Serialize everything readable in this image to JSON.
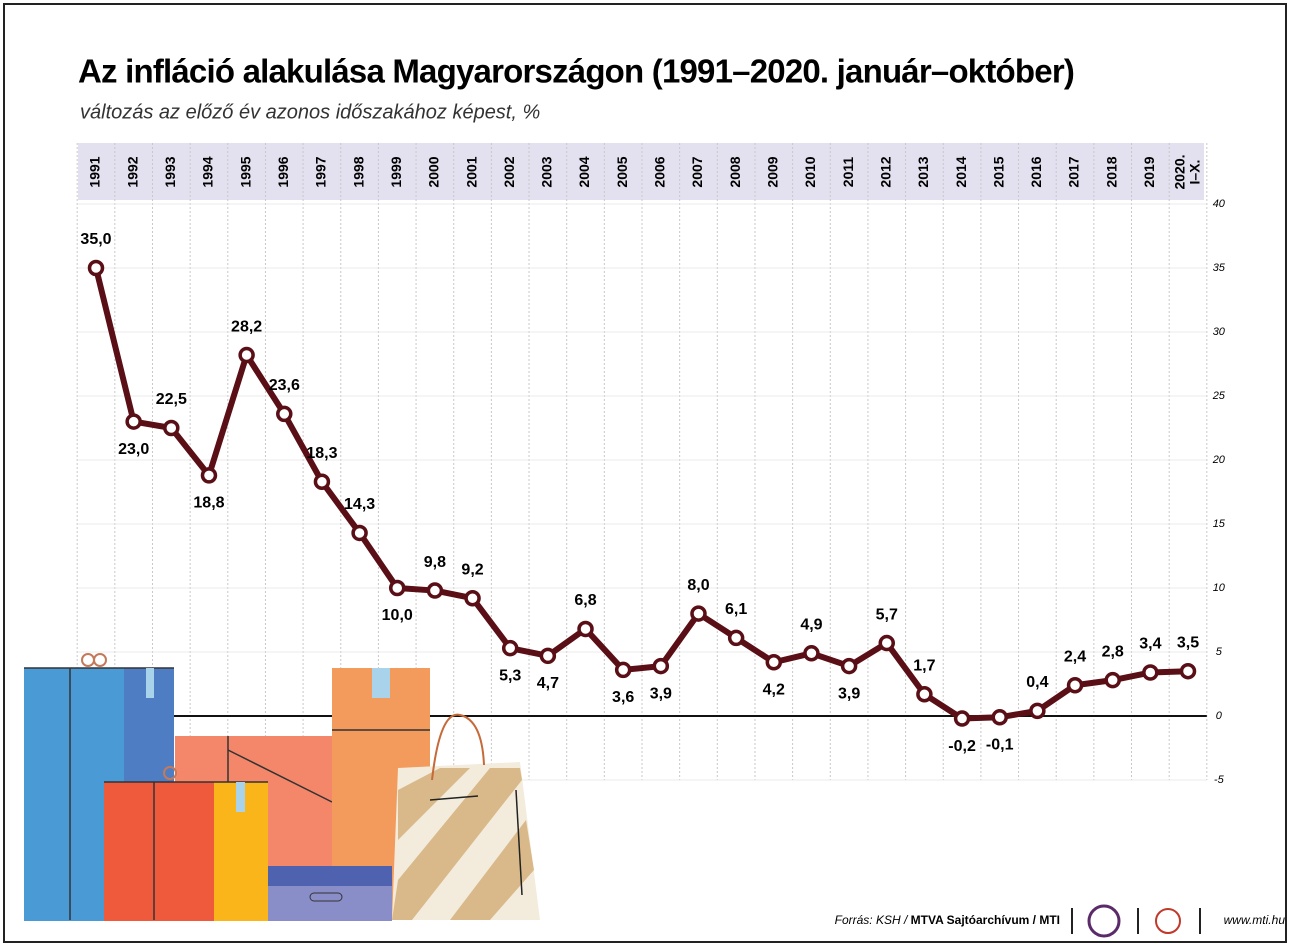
{
  "chart_data": {
    "type": "line",
    "title": "Az infláció alakulása Magyarországon (1991–2020. január–október)",
    "subtitle": "változás az előző év azonos időszakához képest, %",
    "categories": [
      "1991",
      "1992",
      "1993",
      "1994",
      "1995",
      "1996",
      "1997",
      "1998",
      "1999",
      "2000",
      "2001",
      "2002",
      "2003",
      "2004",
      "2005",
      "2006",
      "2007",
      "2008",
      "2009",
      "2010",
      "2011",
      "2012",
      "2013",
      "2014",
      "2015",
      "2016",
      "2017",
      "2018",
      "2019",
      "2020.\nI–X."
    ],
    "series": [
      {
        "color": "#5a0f16",
        "values": [
          35.0,
          23.0,
          22.5,
          18.8,
          28.2,
          23.6,
          18.3,
          14.3,
          10.0,
          9.8,
          9.2,
          5.3,
          4.7,
          6.8,
          3.6,
          3.9,
          8.0,
          6.1,
          4.2,
          4.9,
          3.9,
          5.7,
          1.7,
          -0.2,
          -0.1,
          0.4,
          2.4,
          2.8,
          3.4,
          3.5
        ],
        "value_labels": [
          "35,0",
          "23,0",
          "22,5",
          "18,8",
          "28,2",
          "23,6",
          "18,3",
          "14,3",
          "10,0",
          "9,8",
          "9,2",
          "5,3",
          "4,7",
          "6,8",
          "3,6",
          "3,9",
          "8,0",
          "6,1",
          "4,2",
          "4,9",
          "3,9",
          "5,7",
          "1,7",
          "-0,2",
          "-0,1",
          "0,4",
          "2,4",
          "2,8",
          "3,4",
          "3,5"
        ]
      }
    ],
    "ylim": [
      -5,
      40
    ],
    "yticks": [
      -5,
      0,
      5,
      10,
      15,
      20,
      25,
      30,
      35,
      40
    ],
    "y_axis_side": "right",
    "grid": true,
    "source": "Forrás: KSH / ",
    "source_bold": "MTVA Sajtóarchívum / MTI",
    "website": "www.mti.hu"
  }
}
